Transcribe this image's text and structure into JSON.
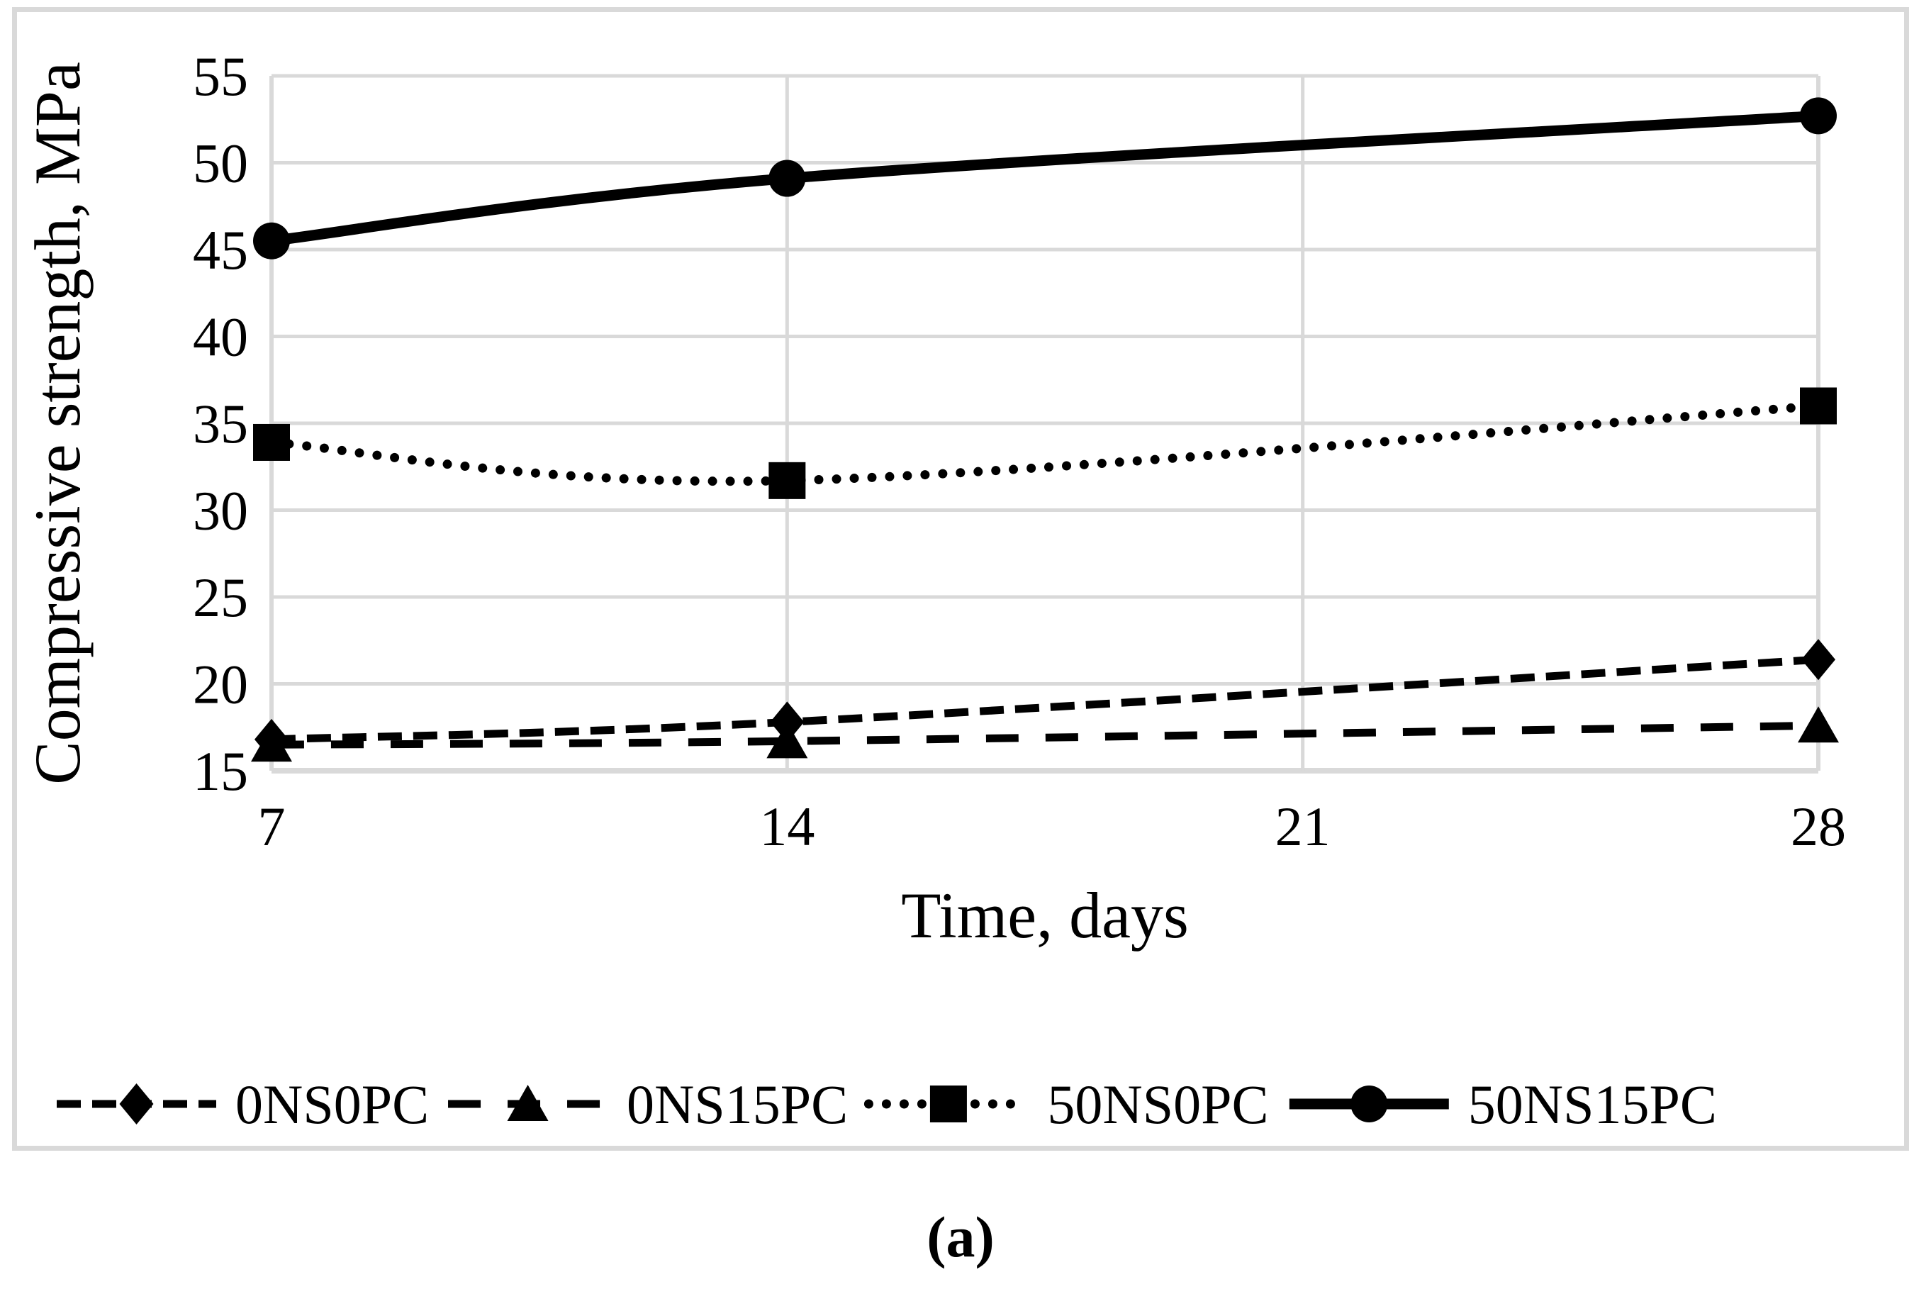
{
  "figure": {
    "caption": "(a)"
  },
  "chart_data": {
    "type": "line",
    "title": "",
    "xlabel": "Time, days",
    "ylabel": "Compressive strength, MPa",
    "x": [
      7,
      14,
      28
    ],
    "x_ticks": [
      7,
      14,
      21,
      28
    ],
    "y_ticks": [
      15,
      20,
      25,
      30,
      35,
      40,
      45,
      50,
      55
    ],
    "xlim": [
      7,
      28
    ],
    "ylim": [
      15,
      55
    ],
    "grid": true,
    "legend_position": "bottom",
    "series": [
      {
        "name": "0NS0PC",
        "marker": "diamond",
        "line": "dashed",
        "values": [
          16.8,
          17.8,
          21.4
        ]
      },
      {
        "name": "0NS15PC",
        "marker": "triangle",
        "line": "long-dash",
        "values": [
          16.5,
          16.7,
          17.6
        ]
      },
      {
        "name": "50NS0PC",
        "marker": "square",
        "line": "dotted",
        "values": [
          33.9,
          31.7,
          36.0
        ]
      },
      {
        "name": "50NS15PC",
        "marker": "circle",
        "line": "solid",
        "values": [
          45.5,
          49.1,
          52.7
        ]
      }
    ],
    "colors": {
      "series": "#000000",
      "grid": "#d9d9d9",
      "panel_border": "#d9d9d9",
      "text": "#000000",
      "background": "#ffffff"
    }
  }
}
